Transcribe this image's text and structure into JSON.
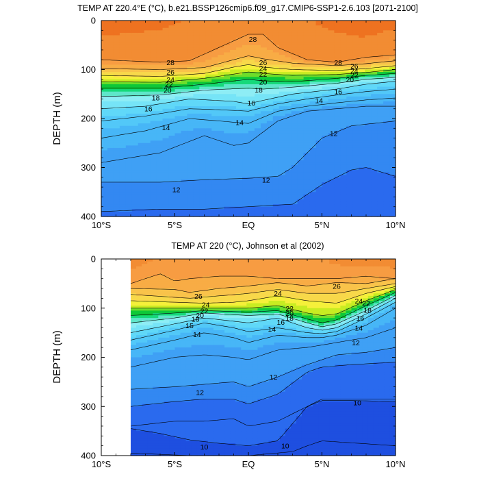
{
  "chart_data": [
    {
      "type": "heatmap",
      "subtype": "filled-contour",
      "title": "TEMP AT 220.4°E (°C), b.e21.BSSP126cmip6.f09_g17.CMIP6-SSP1-2.6.103 [2071-2100]",
      "ylabel": "DEPTH (m)",
      "xlabel": "",
      "xlim": [
        -10,
        10
      ],
      "ylim": [
        400,
        0
      ],
      "y_reversed": true,
      "xticks": [
        "10°S",
        "5°S",
        "EQ",
        "5°N",
        "10°N"
      ],
      "xtick_values": [
        -10,
        -5,
        0,
        5,
        10
      ],
      "yticks": [
        "0",
        "100",
        "200",
        "300",
        "400"
      ],
      "ytick_values": [
        0,
        100,
        200,
        300,
        400
      ],
      "data_lon_range": [
        -10,
        10
      ],
      "contour_interval": 1,
      "contour_labels": [
        {
          "text": "28",
          "x": 0.3,
          "y": 38
        },
        {
          "text": "28",
          "x": -5.3,
          "y": 85
        },
        {
          "text": "28",
          "x": 6.1,
          "y": 85
        },
        {
          "text": "26",
          "x": -5.3,
          "y": 105
        },
        {
          "text": "26",
          "x": 1.0,
          "y": 85
        },
        {
          "text": "26",
          "x": 7.2,
          "y": 92
        },
        {
          "text": "24",
          "x": -5.3,
          "y": 120
        },
        {
          "text": "24",
          "x": 1.0,
          "y": 97
        },
        {
          "text": "24",
          "x": 7.2,
          "y": 102
        },
        {
          "text": "22",
          "x": -5.4,
          "y": 130
        },
        {
          "text": "22",
          "x": 1.0,
          "y": 109
        },
        {
          "text": "22",
          "x": 7.2,
          "y": 111
        },
        {
          "text": "20",
          "x": -5.5,
          "y": 142
        },
        {
          "text": "20",
          "x": 1.0,
          "y": 125
        },
        {
          "text": "20",
          "x": 6.9,
          "y": 120
        },
        {
          "text": "18",
          "x": -6.3,
          "y": 157
        },
        {
          "text": "18",
          "x": 0.7,
          "y": 141
        },
        {
          "text": "16",
          "x": 6.1,
          "y": 145
        },
        {
          "text": "16",
          "x": -6.8,
          "y": 180
        },
        {
          "text": "16",
          "x": 0.2,
          "y": 168
        },
        {
          "text": "14",
          "x": 4.8,
          "y": 163
        },
        {
          "text": "14",
          "x": -5.6,
          "y": 218
        },
        {
          "text": "14",
          "x": -0.6,
          "y": 208
        },
        {
          "text": "12",
          "x": 5.8,
          "y": 230
        },
        {
          "text": "12",
          "x": -4.9,
          "y": 345
        },
        {
          "text": "12",
          "x": 1.2,
          "y": 325
        }
      ]
    },
    {
      "type": "heatmap",
      "subtype": "filled-contour",
      "title": "TEMP AT 220 (°C), Johnson et al (2002)",
      "ylabel": "DEPTH (m)",
      "xlabel": "",
      "xlim": [
        -10,
        10
      ],
      "ylim": [
        400,
        0
      ],
      "y_reversed": true,
      "xticks": [
        "10°S",
        "5°S",
        "EQ",
        "5°N",
        "10°N"
      ],
      "xtick_values": [
        -10,
        -5,
        0,
        5,
        10
      ],
      "yticks": [
        "0",
        "100",
        "200",
        "300",
        "400"
      ],
      "ytick_values": [
        0,
        100,
        200,
        300,
        400
      ],
      "data_lon_range": [
        -8,
        10
      ],
      "contour_interval": 1,
      "contour_labels": [
        {
          "text": "26",
          "x": -3.4,
          "y": 75
        },
        {
          "text": "26",
          "x": 6.0,
          "y": 55
        },
        {
          "text": "24",
          "x": -2.9,
          "y": 93
        },
        {
          "text": "24",
          "x": 2.0,
          "y": 70
        },
        {
          "text": "24",
          "x": 7.5,
          "y": 85
        },
        {
          "text": "22",
          "x": -3.0,
          "y": 105
        },
        {
          "text": "22",
          "x": 2.8,
          "y": 100
        },
        {
          "text": "22",
          "x": 8.0,
          "y": 90
        },
        {
          "text": "20",
          "x": 2.8,
          "y": 110
        },
        {
          "text": "20",
          "x": -3.3,
          "y": 114
        },
        {
          "text": "18",
          "x": 2.8,
          "y": 120
        },
        {
          "text": "18",
          "x": -3.6,
          "y": 122
        },
        {
          "text": "18",
          "x": 8.1,
          "y": 104
        },
        {
          "text": "16",
          "x": 2.2,
          "y": 128
        },
        {
          "text": "16",
          "x": 7.6,
          "y": 120
        },
        {
          "text": "15",
          "x": -4.0,
          "y": 135
        },
        {
          "text": "14",
          "x": -3.5,
          "y": 153
        },
        {
          "text": "14",
          "x": 1.6,
          "y": 142
        },
        {
          "text": "14",
          "x": 7.5,
          "y": 140
        },
        {
          "text": "12",
          "x": 7.3,
          "y": 170
        },
        {
          "text": "12",
          "x": 1.7,
          "y": 240
        },
        {
          "text": "12",
          "x": -3.3,
          "y": 271
        },
        {
          "text": "10",
          "x": 7.4,
          "y": 292
        },
        {
          "text": "10",
          "x": -3.0,
          "y": 382
        },
        {
          "text": "10",
          "x": 2.5,
          "y": 380
        }
      ]
    }
  ],
  "colors": {
    "palette": [
      "#1E4FE0",
      "#2A6AEE",
      "#3388F2",
      "#3FA0F5",
      "#47B6F7",
      "#52C8F8",
      "#60D8F8",
      "#76E4F7",
      "#8EEDF5",
      "#5FE6C9",
      "#16D97A",
      "#0EC838",
      "#6EDD2B",
      "#C8EC22",
      "#F5F03A",
      "#F8D84A",
      "#F9C34A",
      "#F8AC45",
      "#F79C42",
      "#F28C33",
      "#EE7220",
      "#E95B1B",
      "#E63D1A",
      "#E52617",
      "#D91616",
      "#C00F0F"
    ],
    "contour_line": "#000000",
    "missing": "#ffffff"
  }
}
